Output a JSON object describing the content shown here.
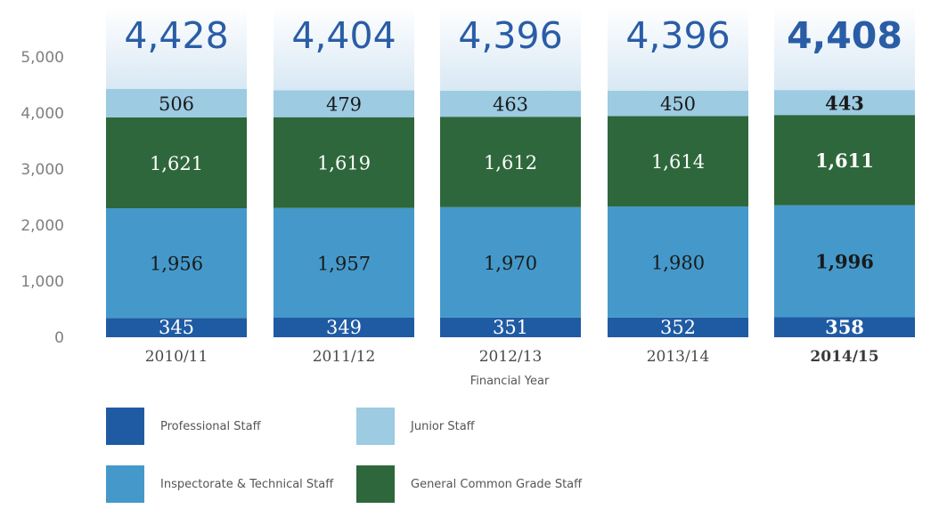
{
  "chart_data": {
    "type": "stacked-bar",
    "categories": [
      "2010/11",
      "2011/12",
      "2012/13",
      "2013/14",
      "2014/15"
    ],
    "highlight_category": "2014/15",
    "series": [
      {
        "name": "Professional Staff",
        "color": "#1f5ba3",
        "label_color": "#ffffff",
        "values": [
          345,
          349,
          351,
          352,
          358
        ]
      },
      {
        "name": "Inspectorate & Technical Staff",
        "color": "#4499ca",
        "label_color": "#1a1a1a",
        "values": [
          1956,
          1957,
          1970,
          1980,
          1996
        ]
      },
      {
        "name": "General Common Grade Staff",
        "color": "#2e673b",
        "label_color": "#ffffff",
        "values": [
          1621,
          1619,
          1612,
          1614,
          1611
        ]
      },
      {
        "name": "Junior Staff",
        "color": "#9ccbe2",
        "label_color": "#1a1a1a",
        "values": [
          506,
          479,
          463,
          450,
          443
        ]
      }
    ],
    "totals": [
      "4,428",
      "4,404",
      "4,396",
      "4,396",
      "4,408"
    ],
    "xlabel": "Financial Year",
    "ylabel": "",
    "ylim": [
      0,
      5000
    ],
    "yticks": [
      "0",
      "1,000",
      "2,000",
      "3,000",
      "4,000",
      "5,000"
    ],
    "grid": false,
    "legend_placement": "bottom"
  }
}
